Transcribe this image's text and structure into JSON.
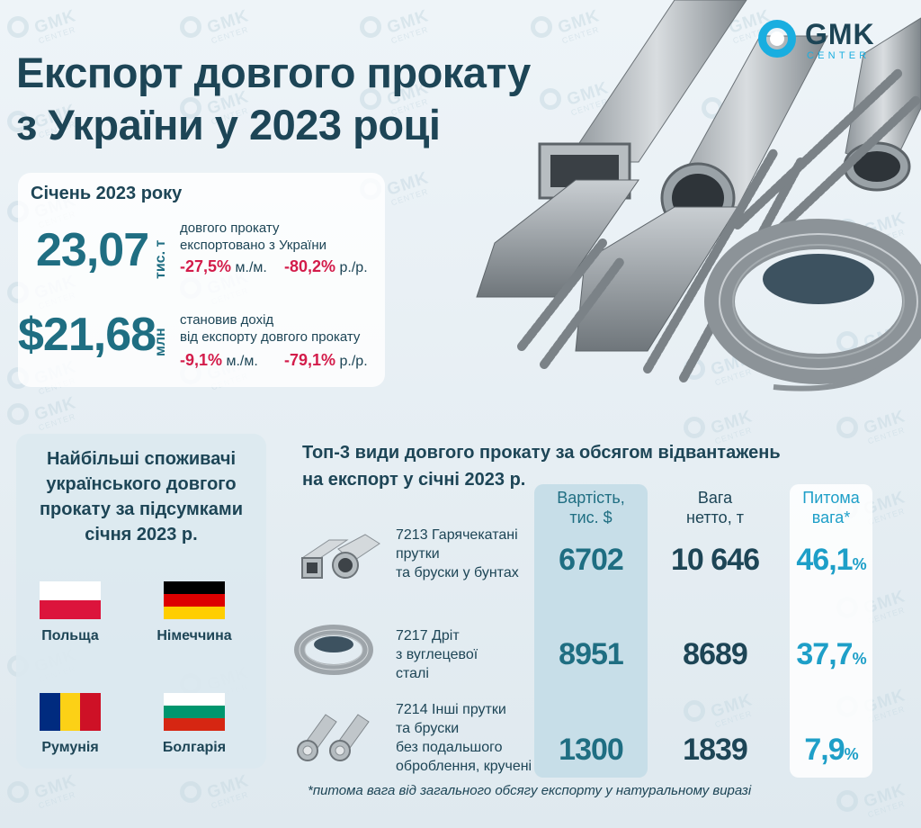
{
  "header": {
    "title_line1": "Експорт довгого прокату",
    "title_line2": "з України у 2023 році",
    "logo_name": "GMK",
    "logo_sub": "CENTER"
  },
  "watermark": {
    "name": "GMK",
    "sub": "CENTER"
  },
  "stats": {
    "month": "Січень 2023 року",
    "volume": {
      "value": "23,07",
      "unit": "тис. т",
      "desc_line1": "довгого прокату",
      "desc_line2": "експортовано з України",
      "mom": "-27,5%",
      "mom_label": "м./м.",
      "yoy": "-80,2%",
      "yoy_label": "р./р."
    },
    "revenue": {
      "value": "$21,68",
      "unit": "млн",
      "desc_line1": "становив дохід",
      "desc_line2": "від експорту довгого прокату",
      "mom": "-9,1%",
      "mom_label": "м./м.",
      "yoy": "-79,1%",
      "yoy_label": "р./р."
    }
  },
  "consumers": {
    "heading_lines": [
      "Найбільші споживачі",
      "українського  довгого",
      "прокату за підсумками",
      "січня 2023 р."
    ],
    "countries": [
      {
        "name": "Польща",
        "colors": [
          "#ffffff",
          "#dc143c"
        ]
      },
      {
        "name": "Німеччина",
        "colors": [
          "#000000",
          "#dd0000",
          "#ffce00"
        ]
      },
      {
        "name": "Румунія",
        "colors": [
          "#002b7f",
          "#fcd116",
          "#ce1126"
        ]
      },
      {
        "name": "Болгарія",
        "colors": [
          "#ffffff",
          "#00966e",
          "#d62612"
        ]
      }
    ]
  },
  "top3": {
    "title_line1": "Топ-3 види довгого прокату за обсягом відвантажень",
    "title_line2": "на експорт у січні 2023 р.",
    "col_value": [
      "Вартість,",
      "тис. $"
    ],
    "col_weight": [
      "Вага",
      "нетто, т"
    ],
    "col_share": [
      "Питома",
      "вага*"
    ],
    "rows": [
      {
        "name_lines": [
          "7213 Гарячекатані",
          "прутки",
          "та бруски у бунтах"
        ],
        "value": "6702",
        "weight": "10 646",
        "share": "46,1",
        "icon": "hollow-section-icon"
      },
      {
        "name_lines": [
          "7217 Дріт",
          "з вуглецевої",
          "сталі"
        ],
        "value": "8951",
        "weight": "8689",
        "share": "37,7",
        "icon": "wire-coil-icon"
      },
      {
        "name_lines": [
          "7214 Інші прутки",
          "та бруски",
          "без подальшого",
          "оброблення, кручені"
        ],
        "value": "1300",
        "weight": "1839",
        "share": "7,9",
        "icon": "twisted-bars-icon"
      }
    ],
    "percent_sign": "%",
    "footnote": "*питома вага від загального обсягу експорту у натуральному виразі"
  },
  "colors": {
    "dark_text": "#1d4556",
    "teal": "#1f6e82",
    "red": "#d31c4a",
    "accent_blue": "#19aee0",
    "share_blue": "#1e9fc8"
  }
}
